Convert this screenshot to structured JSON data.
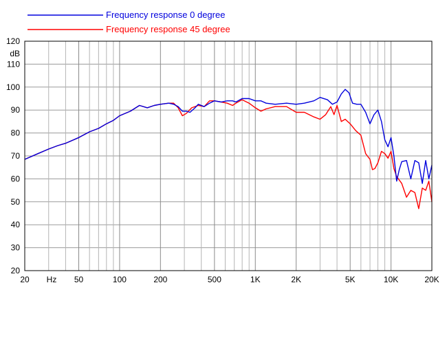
{
  "chart_data": {
    "type": "line",
    "x_scale": "log",
    "xlim": [
      20,
      20000
    ],
    "ylim": [
      20,
      120
    ],
    "ylabel": "dB",
    "xlabel": "Hz",
    "grid": true,
    "legend_position": "top-left",
    "x_tick_labels": [
      {
        "value": 20,
        "label": "20"
      },
      {
        "value": 50,
        "label": "50"
      },
      {
        "value": 100,
        "label": "100"
      },
      {
        "value": 200,
        "label": "200"
      },
      {
        "value": 500,
        "label": "500"
      },
      {
        "value": 1000,
        "label": "1K"
      },
      {
        "value": 2000,
        "label": "2K"
      },
      {
        "value": 5000,
        "label": "5K"
      },
      {
        "value": 10000,
        "label": "10K"
      },
      {
        "value": 20000,
        "label": "20K"
      }
    ],
    "y_ticks": [
      20,
      30,
      40,
      50,
      60,
      70,
      80,
      90,
      100,
      110,
      120
    ],
    "series": [
      {
        "name": "Frequency response 0 degree",
        "color": "#0000dd",
        "points": [
          [
            20,
            68.5
          ],
          [
            25,
            71
          ],
          [
            30,
            73
          ],
          [
            35,
            74.5
          ],
          [
            40,
            75.5
          ],
          [
            50,
            78
          ],
          [
            60,
            80.5
          ],
          [
            70,
            82
          ],
          [
            80,
            84
          ],
          [
            90,
            85.5
          ],
          [
            100,
            87.5
          ],
          [
            120,
            89.5
          ],
          [
            140,
            92
          ],
          [
            160,
            91
          ],
          [
            180,
            92
          ],
          [
            200,
            92.5
          ],
          [
            230,
            93
          ],
          [
            250,
            92.5
          ],
          [
            270,
            91.5
          ],
          [
            290,
            89.5
          ],
          [
            310,
            89.5
          ],
          [
            330,
            89
          ],
          [
            360,
            91
          ],
          [
            380,
            92.5
          ],
          [
            420,
            91.5
          ],
          [
            460,
            93
          ],
          [
            500,
            94
          ],
          [
            560,
            93.5
          ],
          [
            620,
            94
          ],
          [
            680,
            94
          ],
          [
            720,
            93.5
          ],
          [
            800,
            95
          ],
          [
            900,
            95
          ],
          [
            1000,
            94
          ],
          [
            1100,
            94
          ],
          [
            1200,
            93
          ],
          [
            1400,
            92.5
          ],
          [
            1700,
            93
          ],
          [
            2000,
            92.5
          ],
          [
            2300,
            93
          ],
          [
            2700,
            94
          ],
          [
            3000,
            95.5
          ],
          [
            3400,
            94.5
          ],
          [
            3700,
            92.5
          ],
          [
            4000,
            93.5
          ],
          [
            4300,
            97
          ],
          [
            4600,
            99
          ],
          [
            4900,
            97.5
          ],
          [
            5200,
            93
          ],
          [
            5600,
            92.5
          ],
          [
            6000,
            92.5
          ],
          [
            6500,
            89
          ],
          [
            7000,
            84
          ],
          [
            7500,
            88
          ],
          [
            8000,
            90
          ],
          [
            8500,
            85
          ],
          [
            9000,
            77
          ],
          [
            9500,
            74
          ],
          [
            10000,
            78
          ],
          [
            10500,
            70
          ],
          [
            11000,
            59
          ],
          [
            11500,
            64
          ],
          [
            12000,
            67.5
          ],
          [
            13000,
            68
          ],
          [
            14000,
            60
          ],
          [
            15000,
            68
          ],
          [
            16000,
            67
          ],
          [
            17000,
            58
          ],
          [
            18000,
            68
          ],
          [
            19000,
            60
          ],
          [
            20000,
            66
          ]
        ]
      },
      {
        "name": "Frequency response 45 degree",
        "color": "#ff0000",
        "points": [
          [
            20,
            68.5
          ],
          [
            25,
            71
          ],
          [
            30,
            73
          ],
          [
            35,
            74.5
          ],
          [
            40,
            75.5
          ],
          [
            50,
            78
          ],
          [
            60,
            80.5
          ],
          [
            70,
            82
          ],
          [
            80,
            84
          ],
          [
            90,
            85.5
          ],
          [
            100,
            87.5
          ],
          [
            120,
            89.5
          ],
          [
            140,
            92
          ],
          [
            160,
            91
          ],
          [
            180,
            92
          ],
          [
            200,
            92.5
          ],
          [
            230,
            93
          ],
          [
            250,
            93
          ],
          [
            270,
            91
          ],
          [
            290,
            87.5
          ],
          [
            310,
            88.5
          ],
          [
            340,
            91
          ],
          [
            380,
            92
          ],
          [
            420,
            91.5
          ],
          [
            460,
            94
          ],
          [
            500,
            94
          ],
          [
            560,
            93.5
          ],
          [
            620,
            93
          ],
          [
            680,
            92
          ],
          [
            720,
            93
          ],
          [
            800,
            94.5
          ],
          [
            900,
            93
          ],
          [
            1000,
            91
          ],
          [
            1100,
            89.5
          ],
          [
            1200,
            90.5
          ],
          [
            1400,
            91.5
          ],
          [
            1700,
            91.5
          ],
          [
            2000,
            89
          ],
          [
            2300,
            89
          ],
          [
            2700,
            87
          ],
          [
            3000,
            86
          ],
          [
            3300,
            88
          ],
          [
            3600,
            91.5
          ],
          [
            3800,
            88
          ],
          [
            4000,
            92
          ],
          [
            4300,
            85
          ],
          [
            4600,
            86
          ],
          [
            5000,
            84
          ],
          [
            5500,
            81
          ],
          [
            6000,
            79
          ],
          [
            6500,
            71
          ],
          [
            7000,
            68.5
          ],
          [
            7300,
            64
          ],
          [
            7600,
            64.5
          ],
          [
            8000,
            67
          ],
          [
            8500,
            72
          ],
          [
            9000,
            71
          ],
          [
            9500,
            69
          ],
          [
            10000,
            72
          ],
          [
            10500,
            64.5
          ],
          [
            11000,
            61
          ],
          [
            12000,
            58
          ],
          [
            13000,
            52
          ],
          [
            14000,
            55
          ],
          [
            15000,
            54
          ],
          [
            16000,
            47
          ],
          [
            17000,
            56
          ],
          [
            18000,
            55
          ],
          [
            19000,
            59
          ],
          [
            20000,
            50
          ]
        ]
      }
    ]
  }
}
